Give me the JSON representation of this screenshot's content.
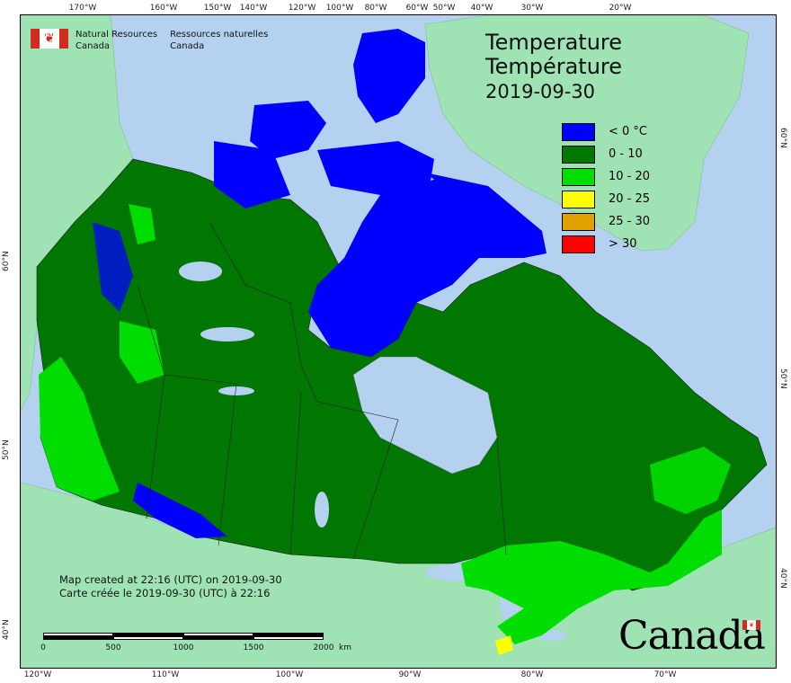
{
  "header": {
    "org_en_line1": "Natural Resources",
    "org_en_line2": "Canada",
    "org_fr_line1": "Ressources naturelles",
    "org_fr_line2": "Canada",
    "flag_icon": "canada-flag-icon"
  },
  "title": {
    "en": "Temperature",
    "fr": "Température",
    "date": "2019-09-30"
  },
  "legend": [
    {
      "label": "< 0 °C",
      "color": "#0000ff"
    },
    {
      "label": "0 - 10",
      "color": "#007700"
    },
    {
      "label": "10 - 20",
      "color": "#00dd00"
    },
    {
      "label": "20 - 25",
      "color": "#ffff00"
    },
    {
      "label": "25 - 30",
      "color": "#e0a000"
    },
    {
      "label": "> 30",
      "color": "#ff0000"
    }
  ],
  "credit": {
    "en": "Map created at 22:16 (UTC) on 2019-09-30",
    "fr": "Carte créée le 2019-09-30 (UTC) à 22:16"
  },
  "scalebar": {
    "labels": [
      "0",
      "500",
      "1000",
      "1500",
      "2000",
      "km"
    ]
  },
  "axes": {
    "top": [
      "170°W",
      "160°W",
      "150°W",
      "140°W",
      "120°W",
      "100°W",
      "80°W",
      "60°W",
      "50°W",
      "40°W",
      "30°W",
      "20°W"
    ],
    "bottom": [
      "120°W",
      "110°W",
      "100°W",
      "90°W",
      "80°W",
      "70°W"
    ],
    "left": [
      "60°N",
      "50°N",
      "40°N"
    ],
    "right": [
      "60°N",
      "50°N",
      "40°N"
    ]
  },
  "wordmark": "Canada",
  "colors": {
    "ocean": "#b4d2ef",
    "neighbour_land": "#9fe3b5",
    "lake": "#b4d2ef",
    "cold": "#0000ff",
    "cool": "#007700",
    "mild": "#00dd00",
    "warm": "#ffff00"
  }
}
